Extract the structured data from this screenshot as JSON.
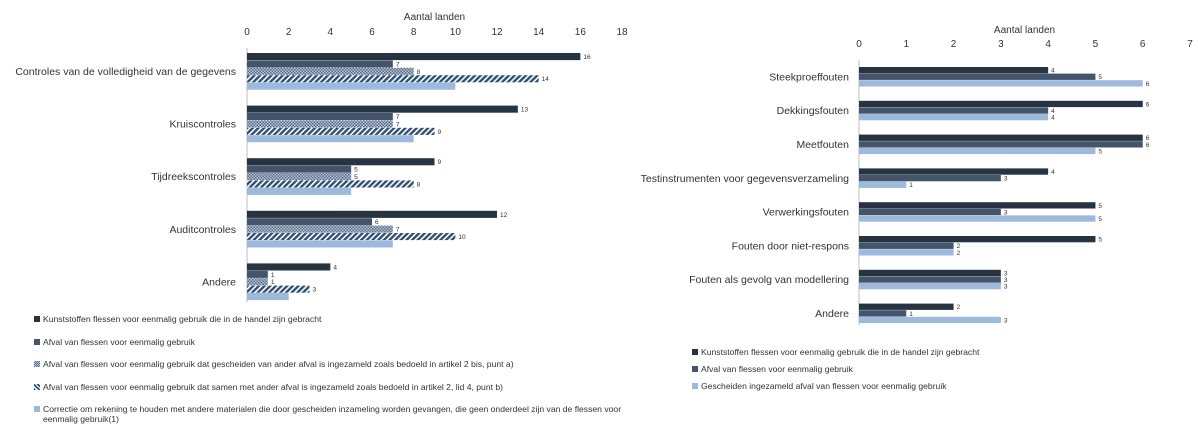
{
  "colors": {
    "dark": "#263340",
    "medium": "#44546A",
    "hatch_dotted": "#8497B0",
    "hatch_diag": "#2F4F73",
    "light": "#9DB9DC",
    "axis": "#BFBFBF"
  },
  "chart_data": [
    {
      "type": "bar",
      "orientation": "horizontal",
      "xlabel": "Aantal landen",
      "xlim": [
        0,
        18
      ],
      "xticks": [
        0,
        2,
        4,
        6,
        8,
        10,
        12,
        14,
        16,
        18
      ],
      "categories": [
        "Controles van de volledigheid van de gegevens",
        "Kruiscontroles",
        "Tijdreekscontroles",
        "Auditcontroles",
        "Andere"
      ],
      "series": [
        {
          "name": "Kunststoffen flessen voor eenmalig gebruik die in de handel zijn gebracht",
          "values": [
            16,
            13,
            9,
            12,
            4
          ],
          "fill": "dark",
          "labels": true
        },
        {
          "name": "Afval van flessen voor eenmalig gebruik",
          "values": [
            7,
            7,
            5,
            6,
            1
          ],
          "fill": "medium",
          "labels": true
        },
        {
          "name": "Afval van flessen voor eenmalig gebruik dat gescheiden van ander afval is ingezameld zoals bedoeld in artikel 2 bis, punt a)",
          "values": [
            8,
            7,
            5,
            7,
            1
          ],
          "fill": "dotted",
          "labels": true
        },
        {
          "name": "Afval van flessen voor eenmalig gebruik dat samen met ander afval is ingezameld zoals bedoeld in artikel 2, lid 4, punt b)",
          "values": [
            14,
            9,
            8,
            10,
            3
          ],
          "fill": "diag",
          "labels": true
        },
        {
          "name": "Correctie om rekening te houden met andere materialen die door gescheiden inzameling worden gevangen, die geen onderdeel zijn van de flessen voor eenmalig gebruik(1)",
          "values": [
            10,
            8,
            5,
            7,
            2
          ],
          "fill": "light",
          "labels": false
        }
      ],
      "legend_position": "bottom"
    },
    {
      "type": "bar",
      "orientation": "horizontal",
      "xlabel": "Aantal landen",
      "xlim": [
        0,
        7
      ],
      "xticks": [
        0,
        1,
        2,
        3,
        4,
        5,
        6,
        7
      ],
      "categories": [
        "Steekproeffouten",
        "Dekkingsfouten",
        "Meetfouten",
        "Testinstrumenten voor gegevensverzameling",
        "Verwerkingsfouten",
        "Fouten door niet-respons",
        "Fouten als gevolg van modellering",
        "Andere"
      ],
      "series": [
        {
          "name": "Kunststoffen flessen voor eenmalig gebruik die in de handel zijn gebracht",
          "values": [
            4,
            6,
            6,
            4,
            5,
            5,
            3,
            2
          ],
          "fill": "dark",
          "labels": true
        },
        {
          "name": "Afval van flessen voor eenmalig gebruik",
          "values": [
            5,
            4,
            6,
            3,
            3,
            2,
            3,
            1
          ],
          "fill": "medium",
          "labels": true
        },
        {
          "name": "Gescheiden ingezameld afval van flessen voor eenmalig gebruik",
          "values": [
            6,
            4,
            5,
            1,
            5,
            2,
            3,
            3
          ],
          "fill": "light",
          "labels": true
        }
      ],
      "legend_position": "bottom"
    }
  ]
}
